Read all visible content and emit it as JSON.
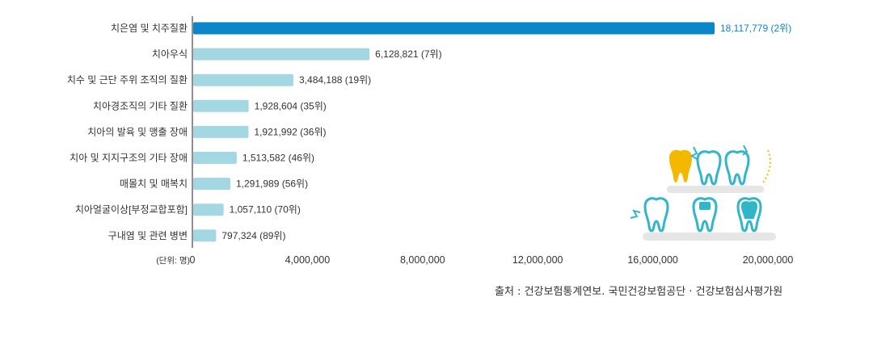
{
  "chart_data": {
    "type": "bar",
    "orientation": "horizontal",
    "unit_label": "(단위: 명)",
    "categories": [
      "치은염 및 치주질환",
      "치아우식",
      "치수 및 근단 주위 조직의 질환",
      "치아경조직의 기타 질환",
      "치아의 발육 및 맹출 장애",
      "치아 및 지지구조의 기타 장애",
      "매몰치 및 매복치",
      "치아얼굴이상[부정교합포함]",
      "구내염 및 관련 병변"
    ],
    "values": [
      18117779,
      6128821,
      3484188,
      1928604,
      1921992,
      1513582,
      1291989,
      1057110,
      797324
    ],
    "data_labels": [
      "18,117,779 (2위)",
      "6,128,821 (7위)",
      "3,484,188 (19위)",
      "1,928,604 (35위)",
      "1,921,992 (36위)",
      "1,513,582 (46위)",
      "1,291,989 (56위)",
      "1,057,110 (70위)",
      "797,324 (89위)"
    ],
    "xlim": [
      0,
      20000000
    ],
    "xticks": [
      0,
      4000000,
      8000000,
      12000000,
      16000000,
      20000000
    ],
    "xtick_labels": [
      "0",
      "4,000,000",
      "8,000,000",
      "12,000,000",
      "16,000,000",
      "20,000,000"
    ],
    "grid": false,
    "colors": {
      "highlight": "#0a86c9",
      "bar": "#a3d8e3",
      "highlight_text": "#0a86c9"
    }
  },
  "source": "출처 : 건강보험통계연보. 국민건강보험공단 · 건강보험심사평가원"
}
